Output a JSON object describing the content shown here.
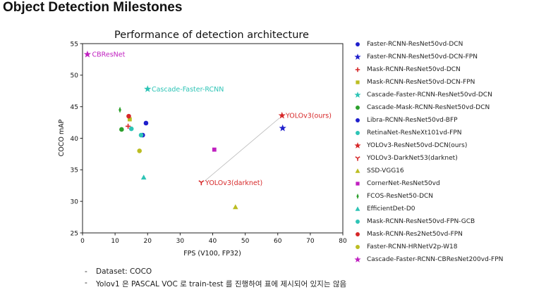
{
  "page": {
    "title": "Object Detection Milestones",
    "notes": [
      "Dataset: COCO",
      "Yolov1 은 PASCAL VOC 로 train-test 를 진행하여 표에 제시되어 있지는 않음"
    ],
    "bullet": "-"
  },
  "chart_data": {
    "type": "scatter",
    "title": "Performance of detection architecture",
    "xlabel": "FPS (V100, FP32)",
    "ylabel": "COCO mAP",
    "xlim": [
      0,
      80
    ],
    "ylim": [
      25,
      55
    ],
    "xticks": [
      0,
      10,
      20,
      30,
      40,
      50,
      60,
      70,
      80
    ],
    "yticks": [
      25,
      30,
      35,
      40,
      45,
      50,
      55
    ],
    "grid": false,
    "legend_position": "outside-right",
    "series": [
      {
        "name": "Faster-RCNN-ResNet50vd-DCN",
        "marker": "circle",
        "color": "#1f1fcc",
        "x": 19.5,
        "y": 42.4
      },
      {
        "name": "Faster-RCNN-ResNet50vd-DCN-FPN",
        "marker": "star",
        "color": "#1f1fcc",
        "x": 61.5,
        "y": 41.6
      },
      {
        "name": "Mask-RCNN-ResNet50vd-DCN",
        "marker": "plus",
        "color": "#d62728",
        "x": 14.0,
        "y": 41.9
      },
      {
        "name": "Mask-RCNN-ResNet50vd-DCN-FPN",
        "marker": "square",
        "color": "#bcbd22",
        "x": 14.5,
        "y": 43.0
      },
      {
        "name": "Cascade-Faster-RCNN-ResNet50vd-DCN",
        "marker": "star",
        "color": "#2ec4b6",
        "x": 20.0,
        "y": 47.8
      },
      {
        "name": "Cascade-Mask-RCNN-ResNet50vd-DCN",
        "marker": "circle",
        "color": "#2ca02c",
        "x": 12.0,
        "y": 41.4
      },
      {
        "name": "Libra-RCNN-ResNet50vd-BFP",
        "marker": "circle",
        "color": "#1f1fcc",
        "x": 18.5,
        "y": 40.5
      },
      {
        "name": "RetinaNet-ResNeXt101vd-FPN",
        "marker": "circle",
        "color": "#2ec4b6",
        "x": 15.0,
        "y": 41.5
      },
      {
        "name": "YOLOv3-ResNet50vd-DCN(ours)",
        "marker": "star",
        "color": "#d62728",
        "x": 61.3,
        "y": 43.6
      },
      {
        "name": "YOLOv3-DarkNet53(darknet)",
        "marker": "tri_down",
        "color": "#d62728",
        "x": 36.5,
        "y": 33.0
      },
      {
        "name": "SSD-VGG16",
        "marker": "triangle",
        "color": "#bcbd22",
        "x": 47.0,
        "y": 29.1
      },
      {
        "name": "CornerNet-ResNet50vd",
        "marker": "square",
        "color": "#c020c0",
        "x": 40.5,
        "y": 38.2
      },
      {
        "name": "FCOS-ResNet50-DCN",
        "marker": "thin_diamond",
        "color": "#2ca02c",
        "x": 11.5,
        "y": 44.5
      },
      {
        "name": "EfficientDet-D0",
        "marker": "triangle",
        "color": "#2ec4b6",
        "x": 18.8,
        "y": 33.8
      },
      {
        "name": "Mask-RCNN-ResNet50vd-FPN-GCB",
        "marker": "circle",
        "color": "#2ec4b6",
        "x": 18.0,
        "y": 40.5
      },
      {
        "name": "Mask-RCNN-Res2Net50vd-FPN",
        "marker": "circle",
        "color": "#d62728",
        "x": 14.2,
        "y": 43.5
      },
      {
        "name": "Faster-RCNN-HRNetV2p-W18",
        "marker": "circle",
        "color": "#bcbd22",
        "x": 17.5,
        "y": 38.0
      },
      {
        "name": "Cascade-Faster-RCNN-CBResNet200vd-FPN",
        "marker": "star",
        "color": "#c020c0",
        "x": 1.5,
        "y": 53.3
      }
    ],
    "annotations": [
      {
        "text": "CBResNet",
        "x": 2.5,
        "y": 53.3,
        "color": "#c020c0"
      },
      {
        "text": "Cascade-Faster-RCNN",
        "x": 20.8,
        "y": 47.8,
        "color": "#2ec4b6"
      },
      {
        "text": "YOLOv3(ours)",
        "x": 62.0,
        "y": 43.6,
        "color": "#d62728"
      },
      {
        "text": "YOLOv3(darknet)",
        "x": 37.3,
        "y": 33.0,
        "color": "#d62728"
      }
    ],
    "connector": {
      "from": [
        37.5,
        33.2
      ],
      "to": [
        60.5,
        43.2
      ],
      "color": "#bbbbbb"
    }
  }
}
